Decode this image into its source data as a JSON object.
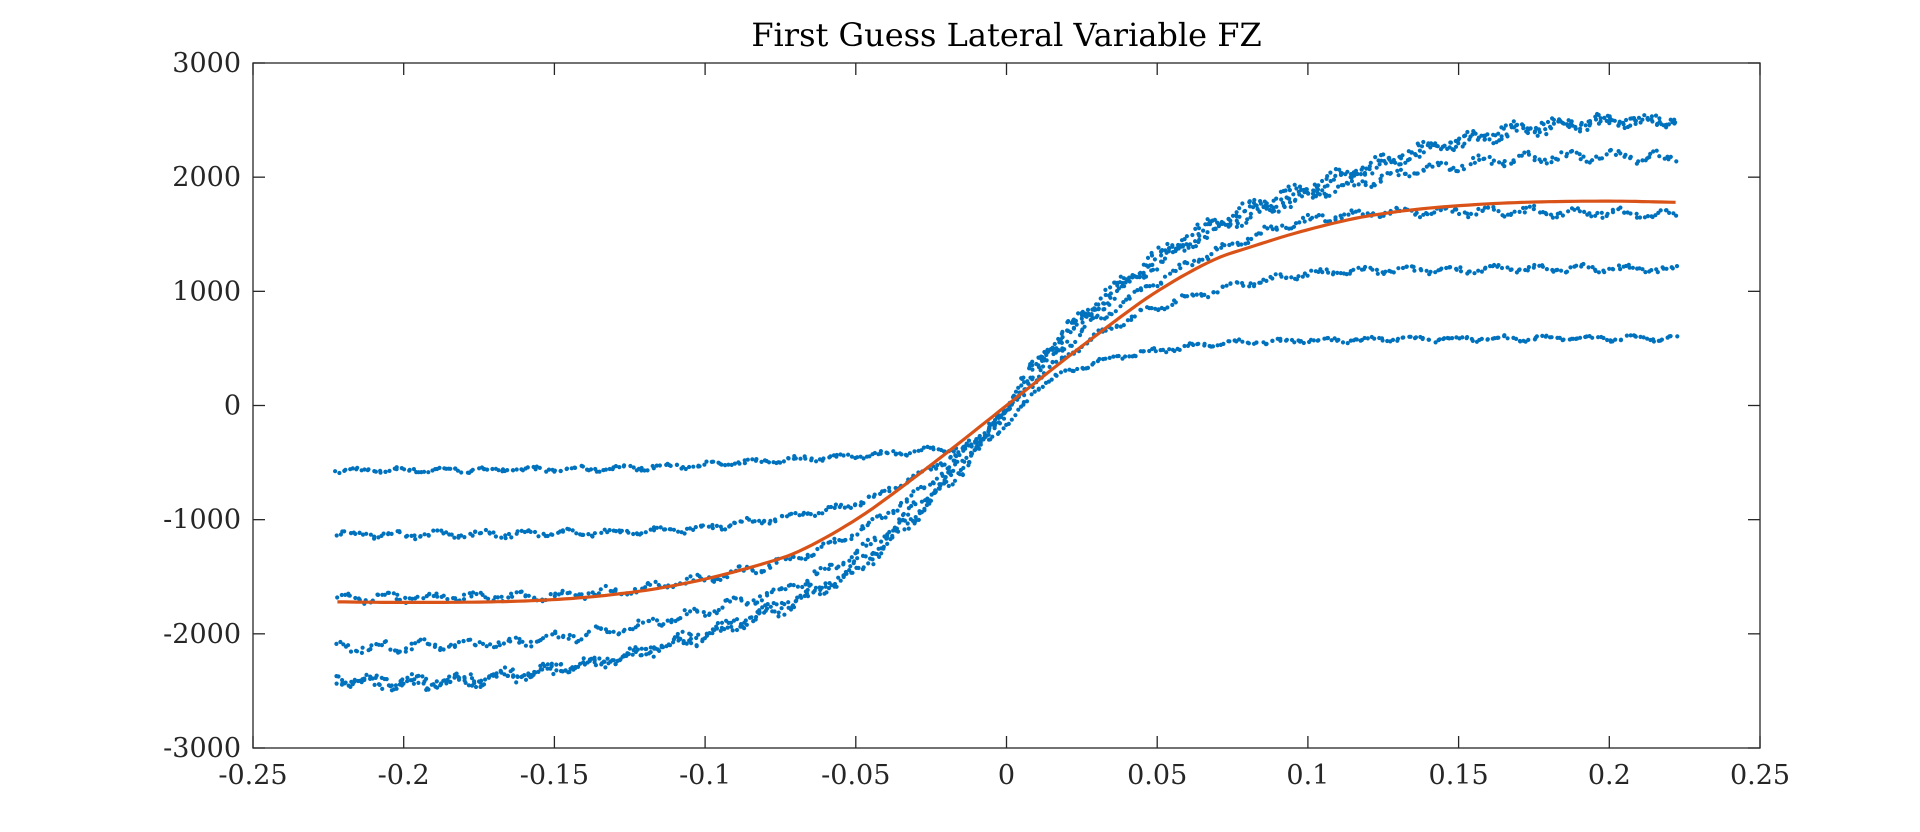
{
  "chart_data": {
    "type": "scatter",
    "title": "First Guess Lateral Variable FZ",
    "xlabel": "",
    "ylabel": "",
    "xlim": [
      -0.25,
      0.25
    ],
    "ylim": [
      -3000,
      3000
    ],
    "x_ticks": [
      -0.25,
      -0.2,
      -0.15,
      -0.1,
      -0.05,
      0,
      0.05,
      0.1,
      0.15,
      0.2,
      0.25
    ],
    "x_tick_labels": [
      "-0.25",
      "-0.2",
      "-0.15",
      "-0.1",
      "-0.05",
      "0",
      "0.05",
      "0.1",
      "0.15",
      "0.2",
      "0.25"
    ],
    "y_ticks": [
      -3000,
      -2000,
      -1000,
      0,
      1000,
      2000,
      3000
    ],
    "y_tick_labels": [
      "-3000",
      "-2000",
      "-1000",
      "0",
      "1000",
      "2000",
      "3000"
    ],
    "grid": false,
    "legend": "none",
    "colors": {
      "measured": "#0072BD",
      "fit": "#D95319"
    },
    "series": [
      {
        "kind": "scatter",
        "color": "#0072BD",
        "x": [
          -0.222,
          -0.2,
          -0.15,
          -0.1,
          -0.07,
          -0.05,
          -0.03,
          -0.01,
          0,
          0.01,
          0.03,
          0.05,
          0.07,
          0.1,
          0.15,
          0.2,
          0.222
        ],
        "y": [
          -570,
          -565,
          -560,
          -520,
          -470,
          -440,
          -400,
          -330,
          -180,
          140,
          380,
          480,
          540,
          570,
          585,
          590,
          590
        ]
      },
      {
        "kind": "scatter",
        "color": "#0072BD",
        "x": [
          -0.222,
          -0.2,
          -0.15,
          -0.1,
          -0.07,
          -0.05,
          -0.03,
          -0.01,
          0,
          0.01,
          0.03,
          0.05,
          0.07,
          0.1,
          0.15,
          0.2,
          0.222
        ],
        "y": [
          -1120,
          -1130,
          -1120,
          -1070,
          -960,
          -860,
          -620,
          -300,
          -60,
          230,
          610,
          860,
          1010,
          1150,
          1190,
          1200,
          1190
        ]
      },
      {
        "kind": "scatter",
        "color": "#0072BD",
        "x": [
          -0.222,
          -0.2,
          -0.15,
          -0.1,
          -0.07,
          -0.05,
          -0.03,
          -0.01,
          0,
          0.01,
          0.03,
          0.05,
          0.07,
          0.1,
          0.15,
          0.2,
          0.222
        ],
        "y": [
          -1690,
          -1680,
          -1660,
          -1520,
          -1330,
          -1110,
          -770,
          -320,
          -40,
          280,
          740,
          1080,
          1360,
          1620,
          1700,
          1690,
          1670
        ]
      },
      {
        "kind": "scatter",
        "color": "#0072BD",
        "x": [
          -0.222,
          -0.2,
          -0.15,
          -0.1,
          -0.07,
          -0.05,
          -0.03,
          -0.01,
          0,
          0.01,
          0.03,
          0.05,
          0.07,
          0.1,
          0.15,
          0.2,
          0.222
        ],
        "y": [
          -2120,
          -2110,
          -2040,
          -1800,
          -1560,
          -1300,
          -880,
          -360,
          -30,
          330,
          830,
          1240,
          1530,
          1820,
          2110,
          2180,
          2170
        ]
      },
      {
        "kind": "scatter",
        "color": "#0072BD",
        "x": [
          -0.222,
          -0.2,
          -0.15,
          -0.1,
          -0.07,
          -0.05,
          -0.03,
          -0.01,
          0,
          0.01,
          0.03,
          0.05,
          0.07,
          0.1,
          0.15,
          0.2,
          0.222
        ],
        "y": [
          -2400,
          -2410,
          -2300,
          -1990,
          -1690,
          -1400,
          -930,
          -380,
          0,
          370,
          870,
          1270,
          1580,
          1880,
          2290,
          2480,
          2490
        ]
      },
      {
        "kind": "scatter",
        "color": "#0072BD",
        "x": [
          -0.222,
          -0.2,
          -0.15,
          -0.1,
          -0.07,
          -0.05,
          -0.03,
          -0.01,
          0,
          0.01,
          0.03,
          0.05,
          0.07,
          0.1,
          0.15,
          0.2,
          0.222
        ],
        "y": [
          -2410,
          -2440,
          -2320,
          -2020,
          -1730,
          -1450,
          -970,
          -410,
          -20,
          390,
          910,
          1320,
          1620,
          1920,
          2330,
          2500,
          2500
        ]
      },
      {
        "kind": "line",
        "color": "#D95319",
        "x": [
          -0.222,
          -0.2,
          -0.15,
          -0.12,
          -0.1,
          -0.08,
          -0.07,
          -0.05,
          -0.03,
          -0.01,
          0,
          0.01,
          0.03,
          0.05,
          0.07,
          0.08,
          0.1,
          0.12,
          0.15,
          0.2,
          0.222
        ],
        "y": [
          -1720,
          -1725,
          -1700,
          -1620,
          -1520,
          -1380,
          -1290,
          -1000,
          -620,
          -210,
          0,
          210,
          620,
          1000,
          1290,
          1380,
          1540,
          1660,
          1750,
          1790,
          1780
        ]
      }
    ]
  }
}
